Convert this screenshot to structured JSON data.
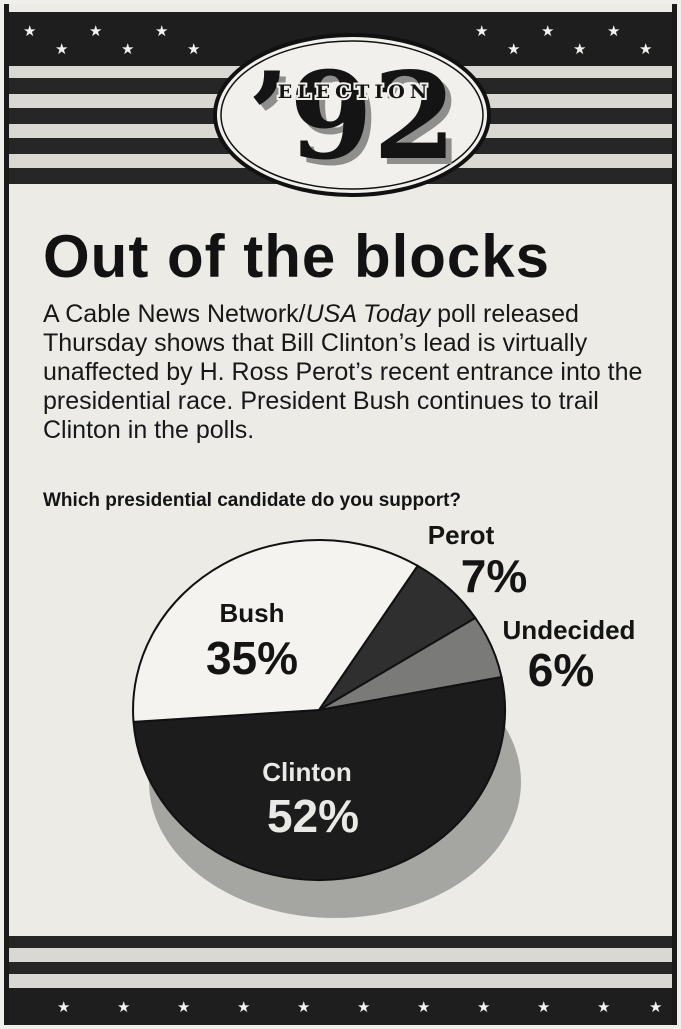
{
  "logo": {
    "year": "’92",
    "word": "ELECTION"
  },
  "headline": "Out of the blocks",
  "body": {
    "before_italic": "A Cable News Network/",
    "italic": "USA Today",
    "after_italic": " poll released Thursday shows that Bill Clinton’s lead is virtually unaffected by H. Ross Perot’s recent entrance into the presidential race. President Bush continues to trail Clinton in the polls."
  },
  "question": "Which presidential candidate do you support?",
  "chart_data": {
    "type": "pie",
    "title": "Which presidential candidate do you support?",
    "slices": [
      {
        "label": "Clinton",
        "value": 52,
        "display": "52%",
        "color": "#1c1c1c"
      },
      {
        "label": "Bush",
        "value": 35,
        "display": "35%",
        "color": "#f4f3ef"
      },
      {
        "label": "Perot",
        "value": 7,
        "display": "7%",
        "color": "#2f2f2f"
      },
      {
        "label": "Undecided",
        "value": 6,
        "display": "6%",
        "color": "#7a7a78"
      }
    ]
  },
  "colors": {
    "ink": "#141414",
    "paper": "#ecebe6",
    "star": "#f2f2ee"
  },
  "icons": {
    "star": "★"
  }
}
